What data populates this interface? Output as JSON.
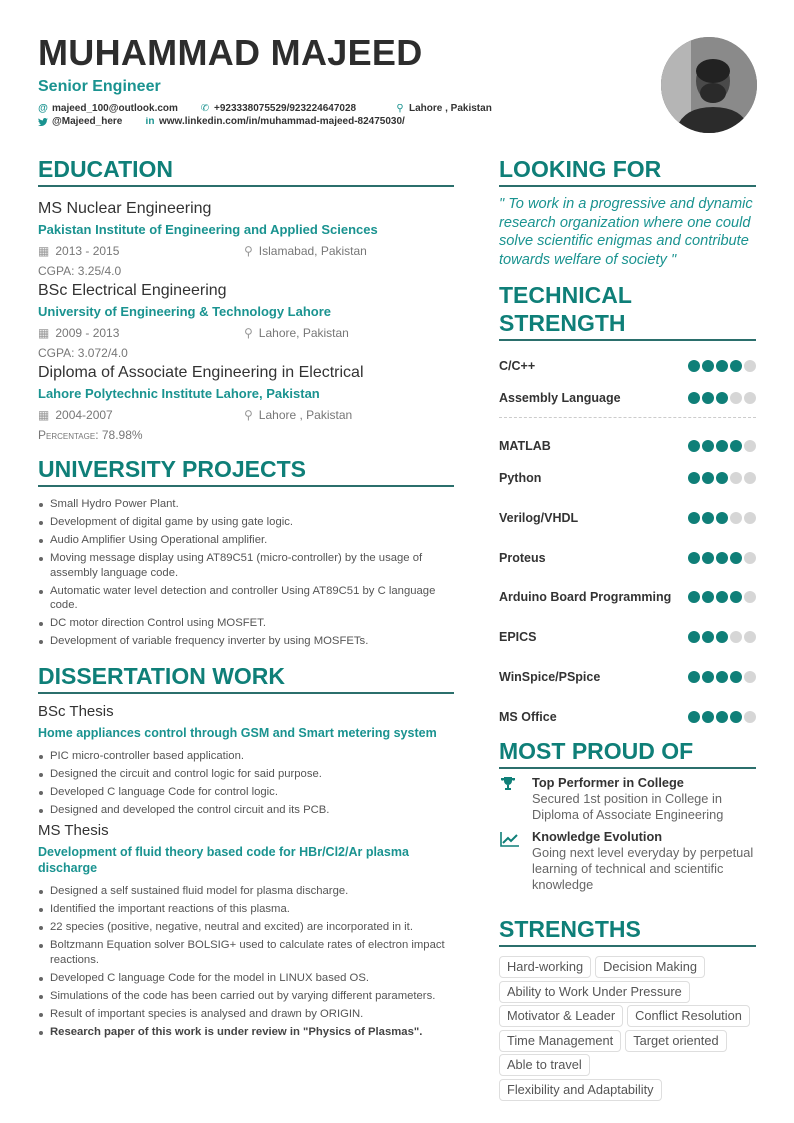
{
  "header": {
    "name": "MUHAMMAD MAJEED",
    "role": "Senior Engineer",
    "email": "majeed_100@outlook.com",
    "phone": "+923338075529/923224647028",
    "location": "Lahore , Pakistan",
    "twitter": "@Majeed_here",
    "linkedin": "www.linkedin.com/in/muhammad-majeed-82475030/"
  },
  "education": {
    "title": "EDUCATION",
    "items": [
      {
        "degree": "MS Nuclear Engineering",
        "school": "Pakistan Institute of Engineering and Applied Sciences",
        "dates": "2013 - 2015",
        "location": "Islamabad, Pakistan",
        "grade": "CGPA: 3.25/4.0"
      },
      {
        "degree": "BSc Electrical Engineering",
        "school": "University of Engineering & Technology Lahore",
        "dates": "2009 - 2013",
        "location": "Lahore, Pakistan",
        "grade": "CGPA: 3.072/4.0"
      },
      {
        "degree": "Diploma of Associate Engineering in Electrical",
        "school": "Lahore Polytechnic Institute Lahore, Pakistan",
        "dates": "2004-2007",
        "location": "Lahore , Pakistan",
        "grade": "Percentage: 78.98%"
      }
    ]
  },
  "projects": {
    "title": "UNIVERSITY PROJECTS",
    "items": [
      "Small Hydro Power Plant.",
      "Development of digital game by using gate logic.",
      "Audio Amplifier Using Operational amplifier.",
      "Moving message display using AT89C51 (micro-controller) by the usage of assembly language code.",
      "Automatic water level detection and controller Using AT89C51 by C language code.",
      "DC motor direction Control using MOSFET.",
      "Development of variable frequency inverter by using MOSFETs."
    ]
  },
  "dissertation": {
    "title": "DISSERTATION WORK",
    "bsc": {
      "label": "BSc Thesis",
      "topic": "Home appliances control through GSM and Smart metering system",
      "items": [
        "PIC micro-controller based application.",
        "Designed the circuit and control logic for said purpose.",
        "Developed C language Code for control logic.",
        "Designed and developed the control circuit and its PCB."
      ]
    },
    "ms": {
      "label": "MS Thesis",
      "topic": "Development of fluid theory based code for HBr/Cl2/Ar plasma discharge",
      "items": [
        "Designed a self sustained fluid model for plasma discharge.",
        "Identified the important reactions of this plasma.",
        "22 species (positive, negative, neutral and excited) are incorporated in it.",
        "Boltzmann Equation solver BOLSIG+ used to calculate rates of electron impact reactions.",
        "Developed C language Code for the model in LINUX based OS.",
        "Simulations of the code has been carried out by varying different parameters.",
        "Result of important species is analysed and drawn by ORIGIN.",
        "Research paper of this work is under review in \"Physics of Plasmas\"."
      ]
    }
  },
  "looking_for": {
    "title": "LOOKING FOR",
    "text": "\" To work in a progressive and dynamic research organization where one could solve scientific enigmas and contribute towards welfare of society \""
  },
  "technical": {
    "title": "TECHNICAL STRENGTH",
    "max": 5,
    "skills": [
      {
        "name": "C/C++",
        "level": 4
      },
      {
        "name": "Assembly Language",
        "level": 3
      },
      {
        "name": "MATLAB",
        "level": 4
      },
      {
        "name": "Python",
        "level": 3
      },
      {
        "name": "Verilog/VHDL",
        "level": 3
      },
      {
        "name": "Proteus",
        "level": 4
      },
      {
        "name": "Arduino Board Programming",
        "level": 4
      },
      {
        "name": "EPICS",
        "level": 3
      },
      {
        "name": "WinSpice/PSpice",
        "level": 4
      },
      {
        "name": "MS Office",
        "level": 4
      }
    ]
  },
  "proud": {
    "title": "MOST PROUD OF",
    "items": [
      {
        "icon": "trophy-icon",
        "title": "Top Performer in College",
        "desc": "Secured 1st position in College in Diploma of Associate Engineering"
      },
      {
        "icon": "line-chart-icon",
        "title": "Knowledge Evolution",
        "desc": "Going next level everyday by perpetual learning of technical and scientific knowledge"
      }
    ]
  },
  "strengths": {
    "title": "STRENGTHS",
    "tags": [
      "Hard-working",
      "Decision Making",
      "Ability to Work Under Pressure",
      "Motivator & Leader",
      "Conflict Resolution",
      "Time Management",
      "Target oriented",
      "Able to travel",
      "Flexibility and Adaptability"
    ]
  },
  "colors": {
    "accent": "#0f7f78",
    "subtitle": "#1a9390",
    "dot_empty": "#d6d6d6"
  }
}
